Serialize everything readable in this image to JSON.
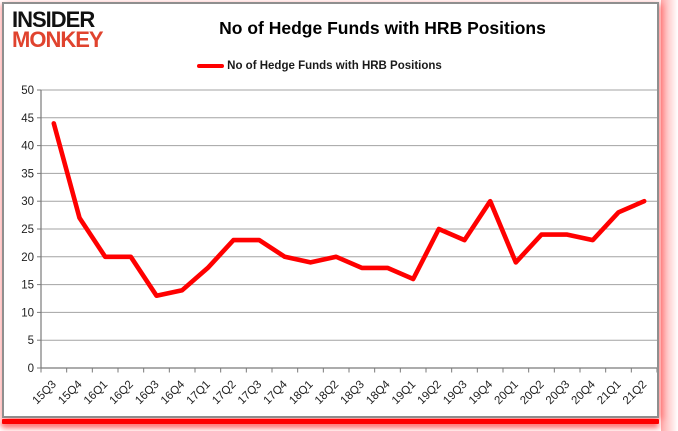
{
  "header": {
    "logo_line1": "INSIDER",
    "logo_line2": "MONKEY",
    "title": "No of Hedge Funds with HRB Positions"
  },
  "legend": {
    "label": "No of Hedge Funds with HRB Positions",
    "swatch_color": "#ff0000"
  },
  "chart_data": {
    "type": "line",
    "title": "No of Hedge Funds with HRB Positions",
    "categories": [
      "15Q3",
      "15Q4",
      "16Q1",
      "16Q2",
      "16Q3",
      "16Q4",
      "17Q1",
      "17Q2",
      "17Q3",
      "17Q4",
      "18Q1",
      "18Q2",
      "18Q3",
      "18Q4",
      "19Q1",
      "19Q2",
      "19Q3",
      "19Q4",
      "20Q1",
      "20Q2",
      "20Q3",
      "20Q4",
      "21Q1",
      "21Q2"
    ],
    "series": [
      {
        "name": "No of Hedge Funds with HRB Positions",
        "color": "#ff0000",
        "values": [
          44,
          27,
          20,
          20,
          13,
          14,
          18,
          23,
          23,
          20,
          19,
          20,
          18,
          18,
          16,
          25,
          23,
          30,
          19,
          24,
          24,
          23,
          28,
          30
        ]
      }
    ],
    "xlabel": "",
    "ylabel": "",
    "ylim": [
      0,
      50
    ],
    "yticks": [
      0,
      5,
      10,
      15,
      20,
      25,
      30,
      35,
      40,
      45,
      50
    ],
    "grid": true,
    "legend_position": "top"
  },
  "colors": {
    "line": "#ff0000",
    "grid": "#a3a3a3",
    "axis": "#7a7a7a",
    "tick_text": "#1f1f1f",
    "logo_black": "#111111",
    "logo_red": "#e0432e",
    "frame_border": "#8f8f8f",
    "bottom_bar": "#fe0000"
  }
}
